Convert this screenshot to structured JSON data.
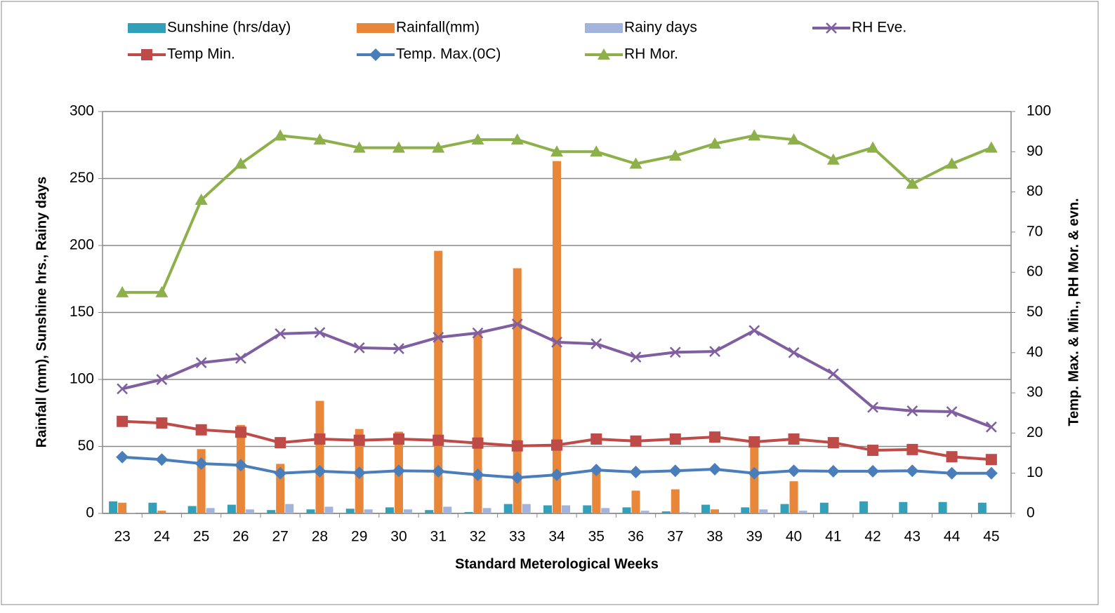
{
  "chart_data": {
    "type": "bar-line",
    "xlabel": "Standard Meterological Weeks",
    "ylabel": "Rainfall (mm), Sunshine hrs., Rainy days",
    "y2label": "Temp. Max. & Min., RH Mor. & evn.",
    "categories": [
      "23",
      "24",
      "25",
      "26",
      "27",
      "28",
      "29",
      "30",
      "31",
      "32",
      "33",
      "34",
      "35",
      "36",
      "37",
      "38",
      "39",
      "40",
      "41",
      "42",
      "43",
      "44",
      "45"
    ],
    "ylim": [
      0,
      300
    ],
    "yticks": [
      0,
      50,
      100,
      150,
      200,
      250,
      300
    ],
    "y2lim": [
      0,
      100
    ],
    "y2ticks": [
      0,
      10,
      20,
      30,
      40,
      50,
      60,
      70,
      80,
      90,
      100
    ],
    "grid": true,
    "series": [
      {
        "name": "Sunshine (hrs/day)",
        "kind": "bar",
        "color": "#31a0b8",
        "values": [
          9,
          8,
          5.5,
          6.5,
          2.5,
          3,
          3.5,
          4.5,
          2.5,
          1,
          7,
          6,
          6,
          4.5,
          1.5,
          6.5,
          4.5,
          7,
          8,
          9,
          8.5,
          8.5,
          8
        ]
      },
      {
        "name": "Rainfall(mm)",
        "kind": "bar",
        "color": "#e8873a",
        "values": [
          8,
          2,
          48,
          66,
          37,
          84,
          63,
          61,
          196,
          135,
          183,
          263,
          34,
          17,
          18,
          3,
          52,
          24,
          0,
          0,
          0,
          0,
          0
        ]
      },
      {
        "name": "Rainy days",
        "kind": "bar",
        "color": "#a3b4dc",
        "values": [
          0.5,
          0,
          4,
          3,
          7,
          5,
          3,
          3,
          5,
          4,
          7,
          6,
          4,
          2,
          1,
          0,
          3,
          2,
          0,
          0,
          0,
          0,
          0
        ]
      },
      {
        "name": "RH Eve.",
        "kind": "line",
        "marker": "x",
        "axis": "y2",
        "color": "#7f5fa0",
        "values": [
          31,
          33.3,
          37.5,
          38.6,
          44.7,
          45,
          41.2,
          41,
          43.8,
          44.9,
          47.1,
          42.6,
          42.2,
          38.9,
          40.1,
          40.3,
          45.5,
          40,
          34.7,
          26.4,
          25.5,
          25.3,
          21.5
        ]
      },
      {
        "name": "Temp Min.",
        "kind": "line",
        "marker": "square",
        "axis": "y2",
        "color": "#be4b48",
        "values": [
          22.9,
          22.5,
          20.8,
          20.2,
          17.6,
          18.5,
          18.2,
          18.5,
          18.2,
          17.5,
          16.8,
          17,
          18.5,
          18,
          18.5,
          19,
          17.8,
          18.5,
          17.6,
          15.7,
          15.9,
          14.1,
          13.4
        ]
      },
      {
        "name": "Temp. Max.(0C)",
        "kind": "line",
        "marker": "diamond",
        "axis": "y2",
        "color": "#4a7ebb",
        "values": [
          14,
          13.4,
          12.4,
          12,
          10,
          10.5,
          10.1,
          10.6,
          10.5,
          9.6,
          8.9,
          9.6,
          10.8,
          10.3,
          10.6,
          11,
          10,
          10.6,
          10.5,
          10.5,
          10.6,
          10,
          10
        ]
      },
      {
        "name": "RH Mor.",
        "kind": "line",
        "marker": "triangle",
        "axis": "y2",
        "color": "#8db04b",
        "values": [
          55,
          55,
          78,
          87,
          94,
          93,
          91,
          91,
          91,
          93,
          93,
          90,
          90,
          87,
          89,
          92,
          94,
          93,
          88,
          91,
          82,
          87,
          91
        ]
      }
    ]
  }
}
